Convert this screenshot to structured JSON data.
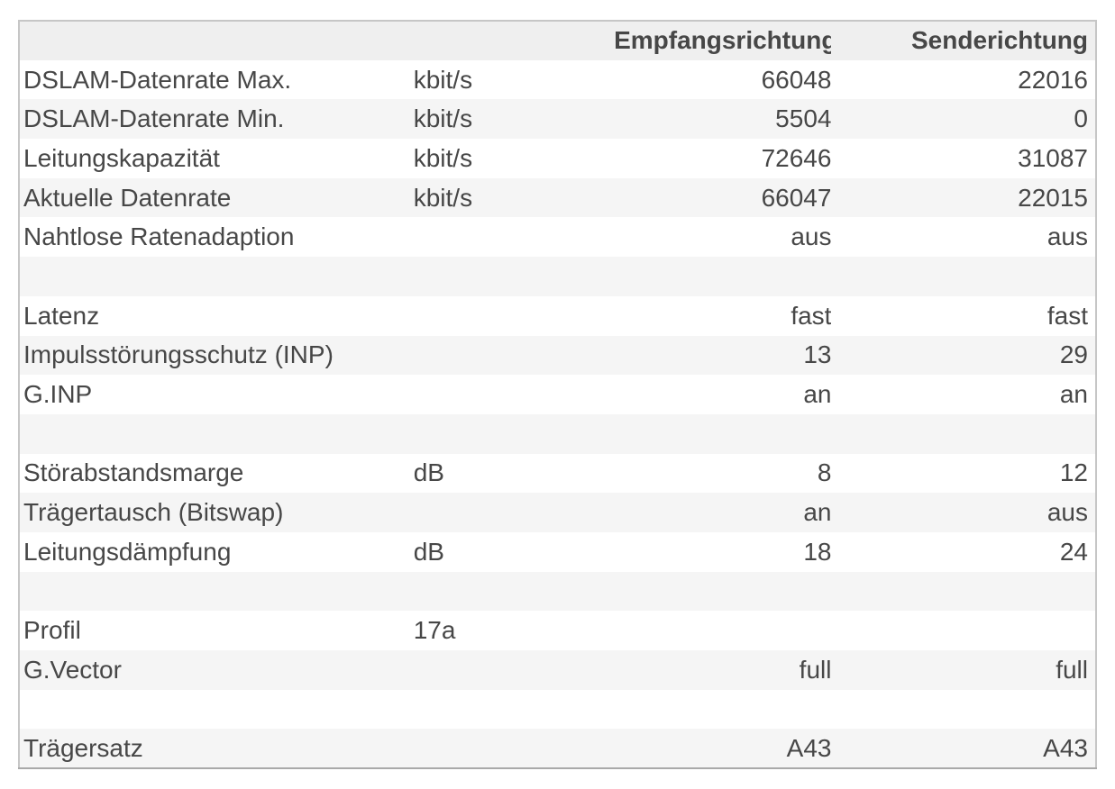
{
  "colors": {
    "table_border": "#c6c6c6",
    "table_border_bottom": "#a9a9a9",
    "header_bg": "#efefef",
    "stripe_bg": "#f5f5f5",
    "row_bg": "#ffffff",
    "text": "#474747"
  },
  "table": {
    "columns": [
      {
        "key": "label",
        "header": "",
        "align": "left"
      },
      {
        "key": "unit",
        "header": "",
        "align": "left"
      },
      {
        "key": "rx",
        "header": "Empfangsrichtung",
        "align": "right"
      },
      {
        "key": "tx",
        "header": "Senderichtung",
        "align": "right"
      }
    ],
    "rows": [
      {
        "label": "DSLAM-Datenrate Max.",
        "unit": "kbit/s",
        "rx": "66048",
        "tx": "22016"
      },
      {
        "label": "DSLAM-Datenrate Min.",
        "unit": "kbit/s",
        "rx": "5504",
        "tx": "0"
      },
      {
        "label": "Leitungskapazität",
        "unit": "kbit/s",
        "rx": "72646",
        "tx": "31087"
      },
      {
        "label": "Aktuelle Datenrate",
        "unit": "kbit/s",
        "rx": "66047",
        "tx": "22015"
      },
      {
        "label": "Nahtlose Ratenadaption",
        "unit": "",
        "rx": "aus",
        "tx": "aus"
      },
      {
        "label": "",
        "unit": "",
        "rx": "",
        "tx": ""
      },
      {
        "label": "Latenz",
        "unit": "",
        "rx": "fast",
        "tx": "fast"
      },
      {
        "label": "Impulsstörungsschutz (INP)",
        "unit": "",
        "rx": "13",
        "tx": "29"
      },
      {
        "label": "G.INP",
        "unit": "",
        "rx": "an",
        "tx": "an"
      },
      {
        "label": "",
        "unit": "",
        "rx": "",
        "tx": ""
      },
      {
        "label": "Störabstandsmarge",
        "unit": "dB",
        "rx": "8",
        "tx": "12"
      },
      {
        "label": "Trägertausch (Bitswap)",
        "unit": "",
        "rx": "an",
        "tx": "aus"
      },
      {
        "label": "Leitungsdämpfung",
        "unit": "dB",
        "rx": "18",
        "tx": "24"
      },
      {
        "label": "",
        "unit": "",
        "rx": "",
        "tx": ""
      },
      {
        "label": "Profil",
        "unit": "17a",
        "rx": "",
        "tx": ""
      },
      {
        "label": "G.Vector",
        "unit": "",
        "rx": "full",
        "tx": "full"
      },
      {
        "label": "",
        "unit": "",
        "rx": "",
        "tx": ""
      },
      {
        "label": "Trägersatz",
        "unit": "",
        "rx": "A43",
        "tx": "A43"
      }
    ]
  }
}
